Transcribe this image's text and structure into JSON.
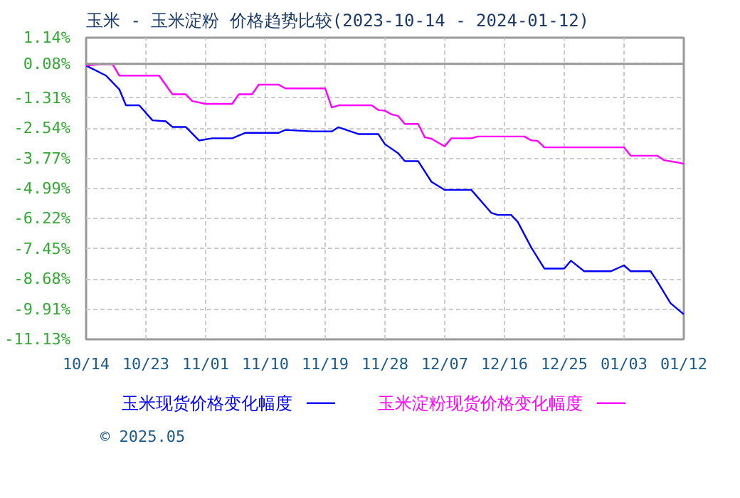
{
  "chart_data": {
    "type": "line",
    "title": "玉米 - 玉米淀粉 价格趋势比较(2023-10-14 - 2024-01-12)",
    "xlim": [
      "2023-10-14",
      "2024-01-12"
    ],
    "xticks": [
      {
        "value": "2023-10-14",
        "label": "10/14"
      },
      {
        "value": "2023-10-23",
        "label": "10/23"
      },
      {
        "value": "2023-11-01",
        "label": "11/01"
      },
      {
        "value": "2023-11-10",
        "label": "11/10"
      },
      {
        "value": "2023-11-19",
        "label": "11/19"
      },
      {
        "value": "2023-11-28",
        "label": "11/28"
      },
      {
        "value": "2023-12-07",
        "label": "12/07"
      },
      {
        "value": "2023-12-16",
        "label": "12/16"
      },
      {
        "value": "2023-12-25",
        "label": "12/25"
      },
      {
        "value": "2024-01-03",
        "label": "01/03"
      },
      {
        "value": "2024-01-12",
        "label": "01/12"
      }
    ],
    "ylim": [
      -11.13,
      1.14
    ],
    "yticks": [
      {
        "value": 1.14,
        "label": "1.14%"
      },
      {
        "value": 0.08,
        "label": "0.08%"
      },
      {
        "value": -1.31,
        "label": "-1.31%"
      },
      {
        "value": -2.54,
        "label": "-2.54%"
      },
      {
        "value": -3.77,
        "label": "-3.77%"
      },
      {
        "value": -4.99,
        "label": "-4.99%"
      },
      {
        "value": -6.22,
        "label": "-6.22%"
      },
      {
        "value": -7.45,
        "label": "-7.45%"
      },
      {
        "value": -8.68,
        "label": "-8.68%"
      },
      {
        "value": -9.91,
        "label": "-9.91%"
      },
      {
        "value": -11.13,
        "label": "-11.13%"
      }
    ],
    "grid": true,
    "legend": "bottom",
    "ref_lines": [
      {
        "axis": "y",
        "value": 0.08,
        "color": "#999999"
      }
    ],
    "annotations": [
      "© 2025.05"
    ],
    "series": [
      {
        "name": "玉米现货价格变化幅度",
        "color": "#0000ff",
        "x": [
          "2023-10-14",
          "2023-10-15",
          "2023-10-17",
          "2023-10-19",
          "2023-10-20",
          "2023-10-22",
          "2023-10-24",
          "2023-10-26",
          "2023-10-27",
          "2023-10-29",
          "2023-10-31",
          "2023-11-02",
          "2023-11-05",
          "2023-11-07",
          "2023-11-12",
          "2023-11-13",
          "2023-11-17",
          "2023-11-20",
          "2023-11-21",
          "2023-11-24",
          "2023-11-27",
          "2023-11-28",
          "2023-11-30",
          "2023-12-01",
          "2023-12-03",
          "2023-12-05",
          "2023-12-07",
          "2023-12-11",
          "2023-12-14",
          "2023-12-15",
          "2023-12-17",
          "2023-12-18",
          "2023-12-20",
          "2023-12-22",
          "2023-12-25",
          "2023-12-26",
          "2023-12-28",
          "2024-01-01",
          "2024-01-03",
          "2024-01-04",
          "2024-01-07",
          "2024-01-08",
          "2024-01-10",
          "2024-01-12"
        ],
        "values": [
          0,
          -0.13,
          -0.4,
          -0.96,
          -1.61,
          -1.61,
          -2.22,
          -2.26,
          -2.49,
          -2.49,
          -3.04,
          -2.95,
          -2.95,
          -2.73,
          -2.73,
          -2.61,
          -2.67,
          -2.67,
          -2.5,
          -2.78,
          -2.78,
          -3.19,
          -3.56,
          -3.88,
          -3.88,
          -4.72,
          -5.05,
          -5.05,
          -5.98,
          -6.07,
          -6.07,
          -6.35,
          -7.38,
          -8.25,
          -8.25,
          -7.93,
          -8.36,
          -8.36,
          -8.12,
          -8.36,
          -8.36,
          -8.77,
          -9.66,
          -10.11
        ]
      },
      {
        "name": "玉米淀粉现货价格变化幅度",
        "color": "#ff00ff",
        "x": [
          "2023-10-14",
          "2023-10-16",
          "2023-10-18",
          "2023-10-19",
          "2023-10-25",
          "2023-10-27",
          "2023-10-29",
          "2023-10-30",
          "2023-11-01",
          "2023-11-05",
          "2023-11-06",
          "2023-11-08",
          "2023-11-09",
          "2023-11-12",
          "2023-11-13",
          "2023-11-19",
          "2023-11-20",
          "2023-11-21",
          "2023-11-26",
          "2023-11-27",
          "2023-11-28",
          "2023-11-29",
          "2023-11-30",
          "2023-12-01",
          "2023-12-03",
          "2023-12-04",
          "2023-12-05",
          "2023-12-07",
          "2023-12-08",
          "2023-12-11",
          "2023-12-12",
          "2023-12-19",
          "2023-12-20",
          "2023-12-21",
          "2023-12-22",
          "2024-01-03",
          "2024-01-04",
          "2024-01-08",
          "2024-01-09",
          "2024-01-11",
          "2024-01-12"
        ],
        "values": [
          0,
          0.06,
          0.06,
          -0.4,
          -0.4,
          -1.16,
          -1.16,
          -1.44,
          -1.55,
          -1.55,
          -1.16,
          -1.16,
          -0.77,
          -0.77,
          -0.92,
          -0.92,
          -1.7,
          -1.61,
          -1.61,
          -1.8,
          -1.83,
          -1.98,
          -2.04,
          -2.37,
          -2.37,
          -2.91,
          -2.97,
          -3.28,
          -2.95,
          -2.95,
          -2.88,
          -2.88,
          -3.03,
          -3.06,
          -3.32,
          -3.32,
          -3.66,
          -3.66,
          -3.84,
          -3.93,
          -3.99
        ]
      }
    ]
  }
}
